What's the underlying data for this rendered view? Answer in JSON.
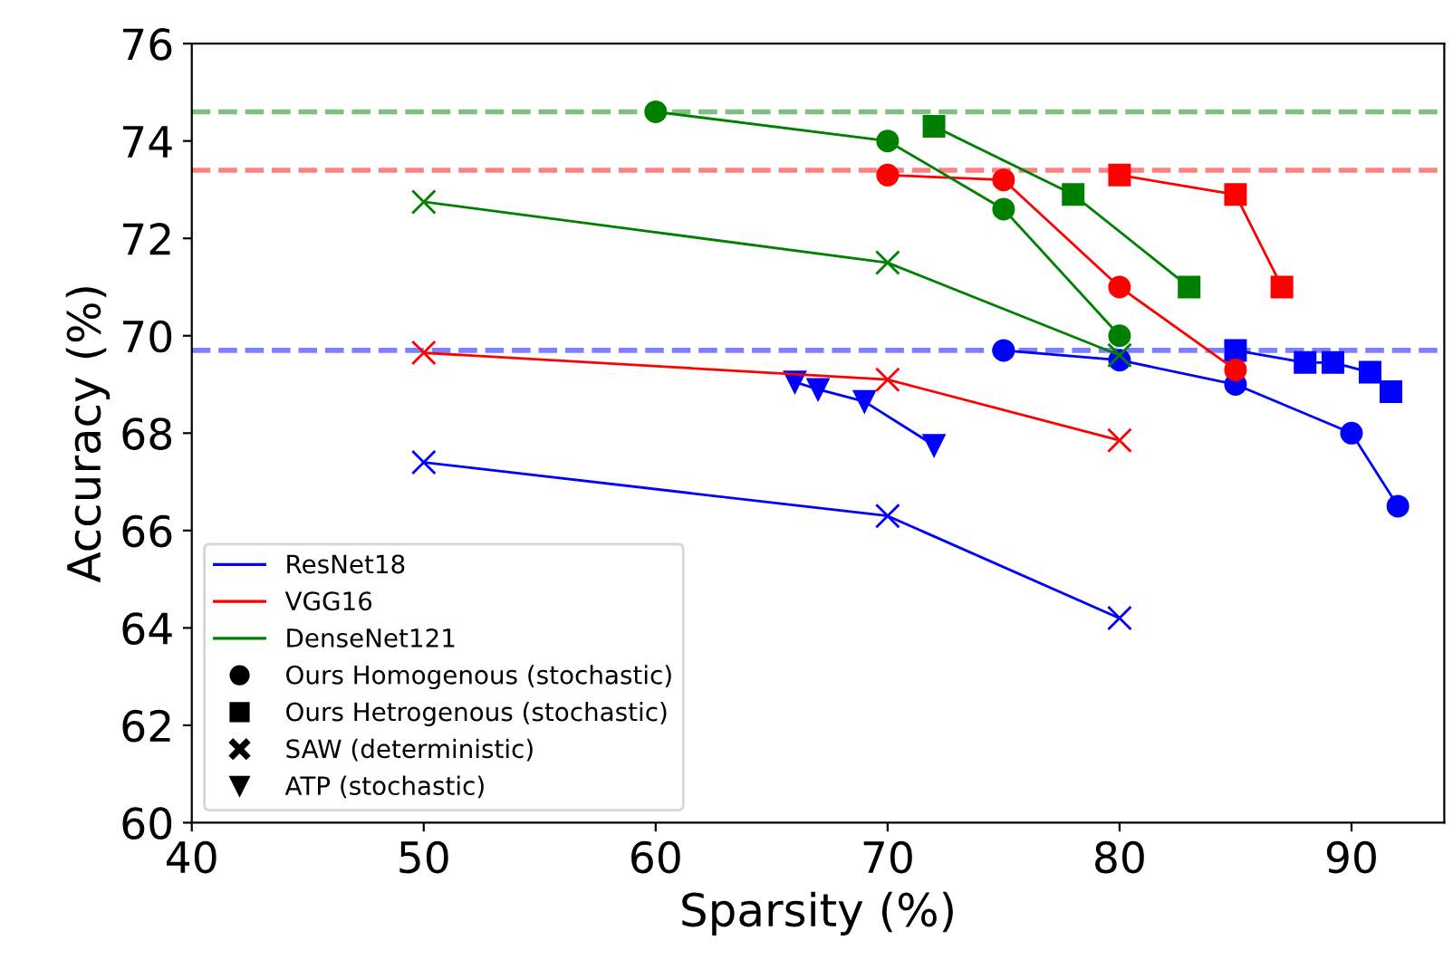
{
  "chart_data": {
    "type": "line",
    "xlabel": "Sparsity (%)",
    "ylabel": "Accuracy (%)",
    "xlim": [
      40,
      94
    ],
    "xticks": [
      40,
      50,
      60,
      70,
      80,
      90
    ],
    "ylim": [
      60,
      76
    ],
    "yticks": [
      60,
      62,
      64,
      66,
      68,
      70,
      72,
      74,
      76
    ],
    "grid": false,
    "legend": "bottom left",
    "line_style": "solid",
    "series": [
      {
        "marker": "circle",
        "color": "#0000ff",
        "x": [
          75,
          80,
          85,
          90,
          92
        ],
        "values": [
          69.7,
          69.5,
          69.0,
          68.0,
          66.5
        ]
      },
      {
        "marker": "square",
        "color": "#0000ff",
        "x": [
          85,
          88,
          89.2,
          90.8,
          91.7
        ],
        "values": [
          69.7,
          69.45,
          69.45,
          69.25,
          68.85
        ]
      },
      {
        "marker": "cross",
        "color": "#0000ff",
        "x": [
          50,
          70,
          80
        ],
        "values": [
          67.4,
          66.3,
          64.2
        ]
      },
      {
        "marker": "triangle",
        "color": "#0000ff",
        "x": [
          66,
          67,
          69,
          72
        ],
        "values": [
          69.05,
          68.9,
          68.65,
          67.75
        ]
      },
      {
        "marker": "circle",
        "color": "#ff0000",
        "x": [
          70,
          75,
          80,
          85
        ],
        "values": [
          73.3,
          73.2,
          71.0,
          69.3
        ]
      },
      {
        "marker": "square",
        "color": "#ff0000",
        "x": [
          80,
          85,
          87
        ],
        "values": [
          73.3,
          72.9,
          71.0
        ]
      },
      {
        "marker": "cross",
        "color": "#ff0000",
        "x": [
          50,
          70,
          80
        ],
        "values": [
          69.65,
          69.1,
          67.85
        ]
      },
      {
        "marker": "circle",
        "color": "#008000",
        "x": [
          60,
          70,
          75,
          80
        ],
        "values": [
          74.6,
          74.0,
          72.6,
          70.0
        ]
      },
      {
        "marker": "square",
        "color": "#008000",
        "x": [
          72,
          78,
          83
        ],
        "values": [
          74.3,
          72.9,
          71.0
        ]
      },
      {
        "marker": "cross",
        "color": "#008000",
        "x": [
          50,
          70,
          80
        ],
        "values": [
          72.75,
          71.5,
          69.6
        ]
      },
      {
        "name": "ResNet18",
        "marker": "none",
        "color": "#0000ff"
      },
      {
        "name": "VGG16",
        "marker": "none",
        "color": "#ff0000"
      },
      {
        "name": "DenseNet121",
        "marker": "none",
        "color": "#008000"
      },
      {
        "name": "Ours Homogenous (stochastic)",
        "type": "scatter",
        "marker": "circle",
        "color": "#000000"
      },
      {
        "name": "Ours Hetrogenous (stochastic)",
        "type": "scatter",
        "marker": "square",
        "color": "#000000"
      },
      {
        "name": "SAW (deterministic)",
        "type": "scatter",
        "marker": "cross",
        "color": "#000000"
      },
      {
        "name": "ATP (stochastic)",
        "type": "scatter",
        "marker": "triangle",
        "color": "#000000"
      }
    ],
    "ref_lines": [
      {
        "axis": "y",
        "value": 74.6,
        "color": "#7fbf7f",
        "line_style": "dashed"
      },
      {
        "axis": "y",
        "value": 73.4,
        "color": "#ff8080",
        "line_style": "dashed"
      },
      {
        "axis": "y",
        "value": 69.7,
        "color": "#8080ff",
        "line_style": "dashed"
      }
    ]
  }
}
